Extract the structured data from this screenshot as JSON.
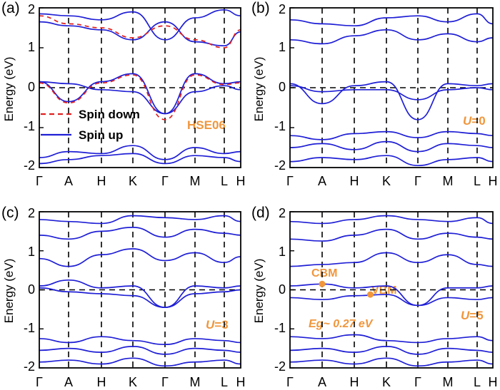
{
  "colors": {
    "spin_up": "#1f1fd6",
    "spin_down": "#e02020",
    "annotation": "#f0963c",
    "guide": "#000000"
  },
  "chart_data": [
    {
      "type": "line",
      "panel_label": "(a)",
      "ylabel": "Energy (eV)",
      "ylim": [
        -2,
        2
      ],
      "yticks": [
        "-2",
        "-1",
        "0",
        "1",
        "2"
      ],
      "kpoints": [
        "Γ",
        "A",
        "H",
        "K",
        "Γ",
        "M",
        "L",
        "H"
      ],
      "legend": {
        "placement": "lower-left",
        "entries": [
          "Spin down",
          "Spin up"
        ]
      },
      "annotations": [
        "HSE06"
      ],
      "series": [
        {
          "name": "Spin up",
          "style": "solid",
          "bands": [
            [
              0.15,
              -0.35,
              0.15,
              0.35,
              -0.65,
              0.35,
              0.1,
              0.15
            ],
            [
              0.15,
              0.1,
              -0.05,
              -0.1,
              -0.65,
              -0.1,
              0.05,
              -0.05
            ],
            [
              -1.75,
              -1.6,
              -1.65,
              -1.45,
              -1.8,
              -1.5,
              -1.65,
              -1.6
            ],
            [
              -1.9,
              -1.8,
              -1.7,
              -1.65,
              -1.9,
              -1.7,
              -1.75,
              -1.85
            ],
            [
              1.65,
              1.55,
              1.45,
              1.2,
              1.65,
              1.15,
              1.05,
              1.4
            ],
            [
              1.85,
              1.8,
              1.7,
              1.9,
              1.2,
              1.75,
              1.95,
              1.8
            ]
          ]
        },
        {
          "name": "Spin down",
          "style": "dashed",
          "bands": [
            [
              0.12,
              -0.38,
              0.12,
              0.32,
              -0.8,
              0.32,
              0.08,
              0.12
            ],
            [
              1.8,
              1.6,
              1.5,
              1.25,
              1.55,
              1.2,
              1.0,
              1.45
            ]
          ]
        }
      ]
    },
    {
      "type": "line",
      "panel_label": "(b)",
      "ylabel": "Energy (eV)",
      "ylim": [
        -2,
        2
      ],
      "yticks": [
        "-2",
        "-1",
        "0",
        "1",
        "2"
      ],
      "kpoints": [
        "Γ",
        "A",
        "H",
        "K",
        "Γ",
        "M",
        "L",
        "H"
      ],
      "annotations": [
        "U=0"
      ],
      "series": [
        {
          "name": "Spin up",
          "style": "solid",
          "bands": [
            [
              0.1,
              -0.4,
              0.05,
              0.15,
              -0.8,
              0.1,
              0.05,
              0.1
            ],
            [
              0.05,
              -0.1,
              -0.05,
              -0.05,
              -0.3,
              -0.05,
              0.0,
              -0.05
            ],
            [
              -1.2,
              -1.3,
              -1.15,
              -1.1,
              -1.25,
              -1.1,
              -1.15,
              -1.2
            ],
            [
              -1.5,
              -1.4,
              -1.55,
              -1.35,
              -1.6,
              -1.4,
              -1.45,
              -1.5
            ],
            [
              -1.85,
              -1.75,
              -1.8,
              -1.7,
              -1.95,
              -1.8,
              -1.75,
              -1.85
            ],
            [
              1.2,
              1.1,
              1.3,
              1.45,
              1.2,
              1.35,
              1.15,
              1.25
            ],
            [
              1.7,
              1.6,
              1.55,
              1.75,
              1.8,
              1.65,
              1.85,
              1.6
            ]
          ]
        }
      ]
    },
    {
      "type": "line",
      "panel_label": "(c)",
      "ylabel": "Energy (eV)",
      "ylim": [
        -2,
        2
      ],
      "yticks": [
        "-2",
        "-1",
        "0",
        "1",
        "2"
      ],
      "kpoints": [
        "Γ",
        "A",
        "H",
        "K",
        "Γ",
        "M",
        "L",
        "H"
      ],
      "annotations": [
        "U=3"
      ],
      "series": [
        {
          "name": "Spin up",
          "style": "solid",
          "bands": [
            [
              0.1,
              0.25,
              0.05,
              0.1,
              -0.45,
              0.1,
              0.05,
              0.1
            ],
            [
              0.05,
              -0.05,
              -0.1,
              -0.15,
              -0.45,
              -0.1,
              -0.05,
              0.0
            ],
            [
              -1.25,
              -1.35,
              -1.2,
              -1.3,
              -1.4,
              -1.25,
              -1.3,
              -1.35
            ],
            [
              -1.55,
              -1.5,
              -1.6,
              -1.45,
              -1.65,
              -1.5,
              -1.55,
              -1.6
            ],
            [
              -1.85,
              -1.8,
              -1.9,
              -1.75,
              -1.95,
              -1.85,
              -1.8,
              -1.9
            ],
            [
              0.8,
              0.6,
              0.9,
              1.05,
              0.75,
              0.95,
              0.7,
              0.85
            ],
            [
              1.4,
              1.3,
              1.5,
              1.6,
              1.35,
              1.55,
              1.45,
              1.4
            ],
            [
              1.8,
              1.75,
              1.7,
              1.9,
              1.85,
              1.8,
              1.9,
              1.75
            ]
          ]
        }
      ]
    },
    {
      "type": "line",
      "panel_label": "(d)",
      "ylabel": "Energy (eV)",
      "ylim": [
        -2,
        2
      ],
      "yticks": [
        "-2",
        "-1",
        "0",
        "1",
        "2"
      ],
      "kpoints": [
        "Γ",
        "A",
        "H",
        "K",
        "Γ",
        "M",
        "L",
        "H"
      ],
      "annotations": [
        "CBM",
        "VBM",
        "Eg~ 0.27 eV",
        "U=5"
      ],
      "markers": [
        {
          "label": "CBM",
          "k": 1.0,
          "e": 0.15
        },
        {
          "label": "VBM",
          "k": 2.5,
          "e": -0.12
        }
      ],
      "series": [
        {
          "name": "Spin up",
          "style": "solid",
          "bands": [
            [
              0.1,
              0.15,
              0.05,
              0.1,
              -0.4,
              0.05,
              0.05,
              0.1
            ],
            [
              -0.2,
              -0.25,
              -0.15,
              -0.12,
              -0.4,
              -0.2,
              -0.25,
              -0.2
            ],
            [
              -1.2,
              -1.25,
              -1.15,
              -1.3,
              -1.35,
              -1.25,
              -1.2,
              -1.3
            ],
            [
              -1.55,
              -1.5,
              -1.6,
              -1.45,
              -1.65,
              -1.5,
              -1.55,
              -1.6
            ],
            [
              -1.85,
              -1.8,
              -1.9,
              -1.75,
              -1.95,
              -1.85,
              -1.8,
              -1.9
            ],
            [
              0.6,
              0.65,
              0.7,
              0.95,
              0.7,
              0.9,
              0.65,
              0.6
            ],
            [
              1.3,
              1.25,
              1.4,
              1.55,
              1.3,
              1.45,
              1.35,
              1.3
            ],
            [
              1.75,
              1.7,
              1.8,
              1.9,
              1.8,
              1.75,
              1.85,
              1.7
            ]
          ]
        }
      ]
    }
  ]
}
